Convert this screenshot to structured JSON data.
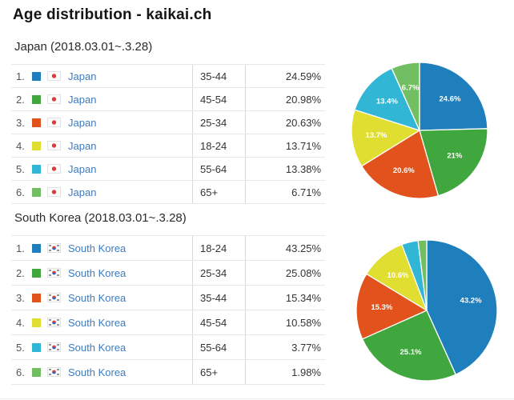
{
  "page": {
    "title": "Age distribution - kaikai.ch"
  },
  "sections": [
    {
      "heading": "Japan (2018.03.01~.3.28)",
      "flag": "japan-flag",
      "rows": [
        {
          "rank": "1.",
          "color": "#1F7FBD",
          "country": "Japan",
          "age": "35-44",
          "percent": "24.59%"
        },
        {
          "rank": "2.",
          "color": "#3FA73D",
          "country": "Japan",
          "age": "45-54",
          "percent": "20.98%"
        },
        {
          "rank": "3.",
          "color": "#E1521D",
          "country": "Japan",
          "age": "25-34",
          "percent": "20.63%"
        },
        {
          "rank": "4.",
          "color": "#E0DF31",
          "country": "Japan",
          "age": "18-24",
          "percent": "13.71%"
        },
        {
          "rank": "5.",
          "color": "#32B6D5",
          "country": "Japan",
          "age": "55-64",
          "percent": "13.38%"
        },
        {
          "rank": "6.",
          "color": "#72BF63",
          "country": "Japan",
          "age": "65+",
          "percent": "6.71%"
        }
      ]
    },
    {
      "heading": "South Korea (2018.03.01~.3.28)",
      "flag": "south-korea-flag",
      "rows": [
        {
          "rank": "1.",
          "color": "#1F7FBD",
          "country": "South Korea",
          "age": "18-24",
          "percent": "43.25%"
        },
        {
          "rank": "2.",
          "color": "#3FA73D",
          "country": "South Korea",
          "age": "25-34",
          "percent": "25.08%"
        },
        {
          "rank": "3.",
          "color": "#E1521D",
          "country": "South Korea",
          "age": "35-44",
          "percent": "15.34%"
        },
        {
          "rank": "4.",
          "color": "#E0DF31",
          "country": "South Korea",
          "age": "45-54",
          "percent": "10.58%"
        },
        {
          "rank": "5.",
          "color": "#32B6D5",
          "country": "South Korea",
          "age": "55-64",
          "percent": "3.77%"
        },
        {
          "rank": "6.",
          "color": "#72BF63",
          "country": "South Korea",
          "age": "65+",
          "percent": "1.98%"
        }
      ]
    }
  ],
  "chart_data": [
    {
      "type": "pie",
      "title": "Japan (2018.03.01~.3.28)",
      "legend_position": "none",
      "start_angle_deg": -90,
      "direction": "clockwise",
      "radius_px": 85,
      "slices": [
        {
          "category": "35-44",
          "value": 24.59,
          "label": "24.6%",
          "color": "#1F7FBD"
        },
        {
          "category": "45-54",
          "value": 20.98,
          "label": "21%",
          "color": "#3FA73D"
        },
        {
          "category": "25-34",
          "value": 20.63,
          "label": "20.6%",
          "color": "#E1521D"
        },
        {
          "category": "18-24",
          "value": 13.71,
          "label": "13.7%",
          "color": "#E0DF31"
        },
        {
          "category": "55-64",
          "value": 13.38,
          "label": "13.4%",
          "color": "#32B6D5"
        },
        {
          "category": "65+",
          "value": 6.71,
          "label": "6.7%",
          "color": "#72BF63"
        }
      ]
    },
    {
      "type": "pie",
      "title": "South Korea (2018.03.01~.3.28)",
      "legend_position": "none",
      "start_angle_deg": -90,
      "direction": "clockwise",
      "radius_px": 88,
      "slices": [
        {
          "category": "18-24",
          "value": 43.25,
          "label": "43.2%",
          "color": "#1F7FBD"
        },
        {
          "category": "25-34",
          "value": 25.08,
          "label": "25.1%",
          "color": "#3FA73D"
        },
        {
          "category": "35-44",
          "value": 15.34,
          "label": "15.3%",
          "color": "#E1521D"
        },
        {
          "category": "45-54",
          "value": 10.58,
          "label": "10.6%",
          "color": "#E0DF31"
        },
        {
          "category": "55-64",
          "value": 3.77,
          "label": "",
          "color": "#32B6D5"
        },
        {
          "category": "65+",
          "value": 1.98,
          "label": "",
          "color": "#72BF63"
        }
      ]
    }
  ]
}
